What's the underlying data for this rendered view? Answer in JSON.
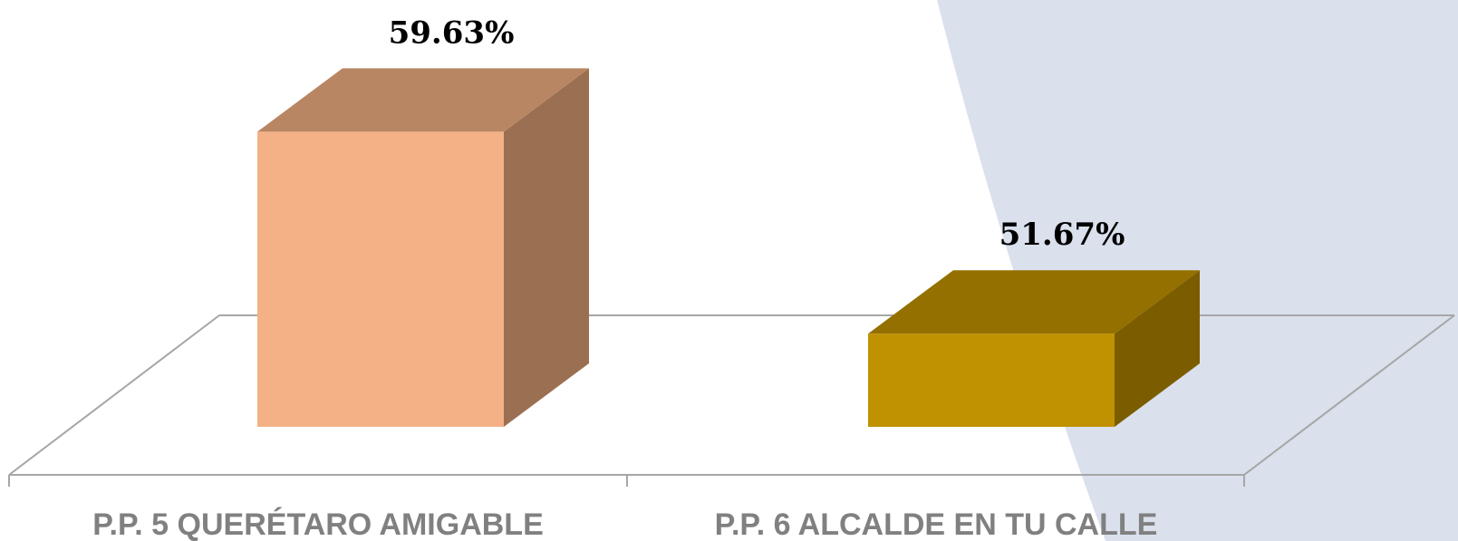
{
  "chart_data": {
    "type": "bar",
    "categories": [
      "P.P. 5 QUERÉTARO AMIGABLE",
      "P.P. 6 ALCALDE EN TU CALLE"
    ],
    "values": [
      59.63,
      51.67
    ],
    "data_labels": [
      "59.63%",
      "51.67%"
    ],
    "value_suffix": "%",
    "title": "",
    "xlabel": "",
    "ylabel": "",
    "ylim": [
      48,
      60
    ],
    "grid": false,
    "legend": "none",
    "style": "3d-column",
    "colors": {
      "bars": [
        {
          "front": "#f4b186",
          "top": "#b88662",
          "side": "#9b7052"
        },
        {
          "front": "#c09100",
          "top": "#947000",
          "side": "#7b5d00"
        }
      ],
      "floor": "#a6a6a6",
      "background_accent": "#dae0ec",
      "category_text": "#808080",
      "value_text": "#000000"
    }
  }
}
